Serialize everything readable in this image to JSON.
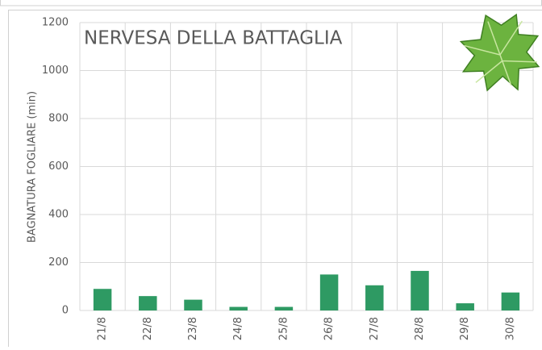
{
  "chart_data": {
    "type": "bar",
    "title": "NERVESA DELLA BATTAGLIA",
    "y_label": "BAGNATURA FOGLIARE (min)",
    "categories": [
      "21/8",
      "22/8",
      "23/8",
      "24/8",
      "25/8",
      "26/8",
      "27/8",
      "28/8",
      "29/8",
      "30/8"
    ],
    "values": [
      90,
      60,
      45,
      15,
      15,
      150,
      105,
      165,
      30,
      75
    ],
    "color": "#2e9a63",
    "ylim": [
      0,
      1200
    ],
    "yticks": [
      0,
      200,
      400,
      600,
      800,
      1000,
      1200
    ],
    "grid": true
  }
}
